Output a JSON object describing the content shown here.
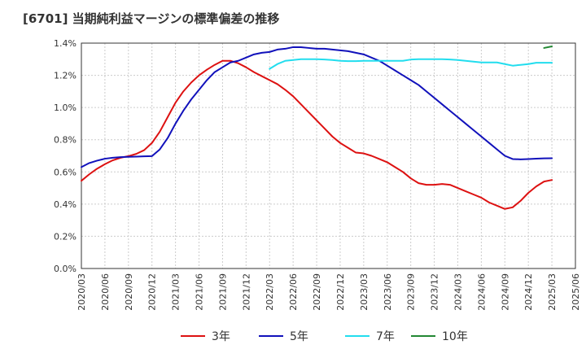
{
  "chart_data": {
    "type": "line",
    "title": "[6701]  当期純利益マージンの標準偏差の推移",
    "xlabel": "",
    "ylabel": "",
    "ylim": [
      0,
      0.014
    ],
    "y_ticks": [
      "0.0%",
      "0.2%",
      "0.4%",
      "0.6%",
      "0.8%",
      "1.0%",
      "1.2%",
      "1.4%"
    ],
    "y_tick_values": [
      0,
      0.002,
      0.004,
      0.006,
      0.008,
      0.01,
      0.012,
      0.014
    ],
    "x_ticks": [
      "2020/03",
      "2020/06",
      "2020/09",
      "2020/12",
      "2021/03",
      "2021/06",
      "2021/09",
      "2021/12",
      "2022/03",
      "2022/06",
      "2022/09",
      "2022/12",
      "2023/03",
      "2023/06",
      "2023/09",
      "2023/12",
      "2024/03",
      "2024/06",
      "2024/09",
      "2024/12",
      "2025/03",
      "2025/06"
    ],
    "grid": true,
    "legend_position": "bottom",
    "x": [
      "2020/03",
      "2020/04",
      "2020/05",
      "2020/06",
      "2020/07",
      "2020/08",
      "2020/09",
      "2020/10",
      "2020/11",
      "2020/12",
      "2021/01",
      "2021/02",
      "2021/03",
      "2021/04",
      "2021/05",
      "2021/06",
      "2021/07",
      "2021/08",
      "2021/09",
      "2021/10",
      "2021/11",
      "2021/12",
      "2022/01",
      "2022/02",
      "2022/03",
      "2022/04",
      "2022/05",
      "2022/06",
      "2022/07",
      "2022/08",
      "2022/09",
      "2022/10",
      "2022/11",
      "2022/12",
      "2023/01",
      "2023/02",
      "2023/03",
      "2023/04",
      "2023/05",
      "2023/06",
      "2023/07",
      "2023/08",
      "2023/09",
      "2023/10",
      "2023/11",
      "2023/12",
      "2024/01",
      "2024/02",
      "2024/03",
      "2024/04",
      "2024/05",
      "2024/06",
      "2024/07",
      "2024/08",
      "2024/09",
      "2024/10",
      "2024/11",
      "2024/12",
      "2025/01",
      "2025/02",
      "2025/03"
    ],
    "series": [
      {
        "name": "3年",
        "color": "#dd1111",
        "values": [
          0.00545,
          0.00585,
          0.0062,
          0.00648,
          0.00672,
          0.00688,
          0.00698,
          0.00712,
          0.00735,
          0.0078,
          0.0085,
          0.0094,
          0.0103,
          0.011,
          0.01155,
          0.012,
          0.01235,
          0.01265,
          0.0129,
          0.0129,
          0.01275,
          0.0125,
          0.0122,
          0.01195,
          0.0117,
          0.01145,
          0.0111,
          0.0107,
          0.0102,
          0.0097,
          0.0092,
          0.0087,
          0.0082,
          0.0078,
          0.0075,
          0.0072,
          0.00715,
          0.007,
          0.0068,
          0.0066,
          0.0063,
          0.006,
          0.0056,
          0.0053,
          0.0052,
          0.0052,
          0.00525,
          0.0052,
          0.005,
          0.0048,
          0.0046,
          0.0044,
          0.0041,
          0.0039,
          0.0037,
          0.0038,
          0.0042,
          0.0047,
          0.0051,
          0.0054,
          0.0055
        ]
      },
      {
        "name": "5年",
        "color": "#1111bb",
        "values": [
          0.0063,
          0.00655,
          0.0067,
          0.00682,
          0.00688,
          0.00692,
          0.00694,
          0.00695,
          0.00697,
          0.00698,
          0.0074,
          0.0081,
          0.009,
          0.0098,
          0.0105,
          0.0111,
          0.0117,
          0.0122,
          0.0125,
          0.0128,
          0.0129,
          0.0131,
          0.0133,
          0.0134,
          0.01345,
          0.0136,
          0.01365,
          0.01375,
          0.01375,
          0.0137,
          0.01365,
          0.01365,
          0.0136,
          0.01355,
          0.0135,
          0.0134,
          0.0133,
          0.0131,
          0.0129,
          0.0126,
          0.0123,
          0.012,
          0.0117,
          0.0114,
          0.011,
          0.0106,
          0.0102,
          0.0098,
          0.0094,
          0.009,
          0.0086,
          0.0082,
          0.0078,
          0.0074,
          0.007,
          0.0068,
          0.00678,
          0.0068,
          0.00682,
          0.00684,
          0.00685
        ]
      },
      {
        "name": "7年",
        "color": "#22ddee",
        "values": [
          null,
          null,
          null,
          null,
          null,
          null,
          null,
          null,
          null,
          null,
          null,
          null,
          null,
          null,
          null,
          null,
          null,
          null,
          null,
          null,
          null,
          null,
          null,
          null,
          0.0124,
          0.0127,
          0.0129,
          0.01295,
          0.013,
          0.013,
          0.013,
          0.01298,
          0.01295,
          0.0129,
          0.01288,
          0.01288,
          0.0129,
          0.0129,
          0.0129,
          0.0129,
          0.0129,
          0.0129,
          0.01298,
          0.013,
          0.013,
          0.013,
          0.013,
          0.01298,
          0.01295,
          0.0129,
          0.01285,
          0.0128,
          0.0128,
          0.0128,
          0.0127,
          0.0126,
          0.01265,
          0.0127,
          0.01278,
          0.01278,
          0.01278
        ]
      },
      {
        "name": "10年",
        "color": "#228833",
        "values": [
          null,
          null,
          null,
          null,
          null,
          null,
          null,
          null,
          null,
          null,
          null,
          null,
          null,
          null,
          null,
          null,
          null,
          null,
          null,
          null,
          null,
          null,
          null,
          null,
          null,
          null,
          null,
          null,
          null,
          null,
          null,
          null,
          null,
          null,
          null,
          null,
          null,
          null,
          null,
          null,
          null,
          null,
          null,
          null,
          null,
          null,
          null,
          null,
          null,
          null,
          null,
          null,
          null,
          null,
          null,
          null,
          null,
          null,
          null,
          0.0137,
          0.0138
        ]
      }
    ]
  }
}
